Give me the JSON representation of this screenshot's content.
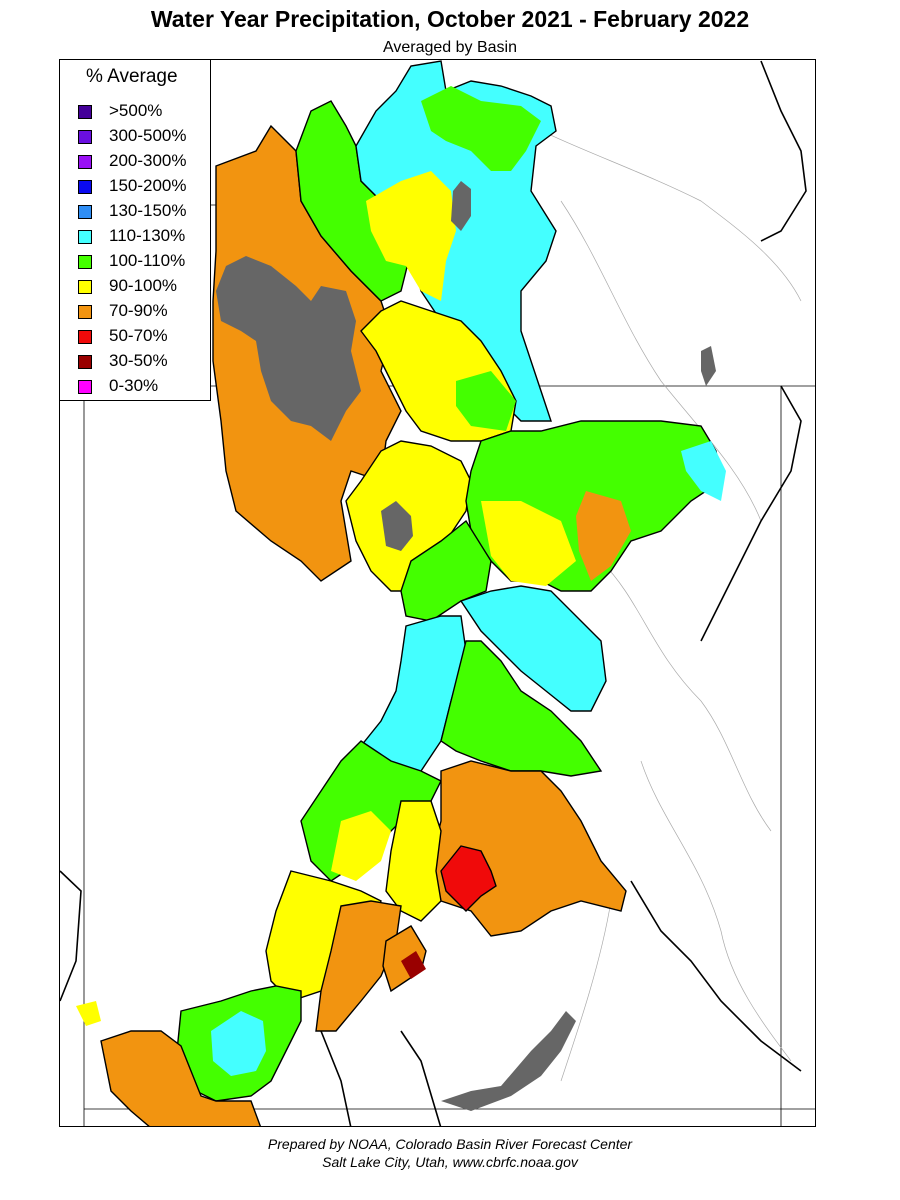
{
  "header": {
    "title": "Water Year Precipitation, October 2021 - February 2022",
    "subtitle": "Averaged by Basin"
  },
  "legend": {
    "title": "% Average",
    "items": [
      {
        "label": ">500%",
        "color": "#440099"
      },
      {
        "label": "300-500%",
        "color": "#6a0fe0"
      },
      {
        "label": "200-300%",
        "color": "#9a10f5"
      },
      {
        "label": "150-200%",
        "color": "#0a0af0"
      },
      {
        "label": "130-150%",
        "color": "#2f8ef5"
      },
      {
        "label": "110-130%",
        "color": "#44ffff"
      },
      {
        "label": "100-110%",
        "color": "#44ff00"
      },
      {
        "label": "90-100%",
        "color": "#ffff00"
      },
      {
        "label": "70-90%",
        "color": "#f29410"
      },
      {
        "label": "50-70%",
        "color": "#f00a0a"
      },
      {
        "label": "30-50%",
        "color": "#990000"
      },
      {
        "label": "0-30%",
        "color": "#ff00ff"
      }
    ]
  },
  "map": {
    "colors": {
      "lake": "#666666",
      "state_border": "#000000",
      "basin_border": "#000000",
      "river": "#aaaaaa"
    }
  },
  "footer": {
    "line1": "Prepared by NOAA, Colorado Basin River Forecast Center",
    "line2": "Salt Lake City, Utah, www.cbrfc.noaa.gov"
  }
}
